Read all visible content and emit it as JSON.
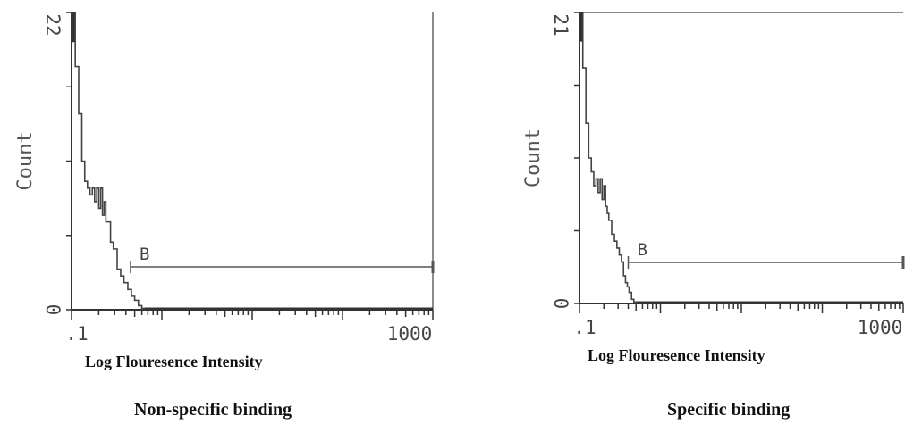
{
  "chart_data": [
    {
      "type": "histogram",
      "title": "Non-specific binding",
      "xlabel": "Log Flouresence Intensity",
      "ylabel": "Count",
      "x_scale": "log",
      "xlim": [
        0.1,
        1000
      ],
      "ylim": [
        0,
        22
      ],
      "y_tick_labels": [
        "0",
        "22"
      ],
      "x_tick_labels": [
        ".1",
        "1000"
      ],
      "gate": {
        "label": "B",
        "x_start": 0.45,
        "x_end": 1000
      },
      "series": [
        {
          "x": [
            0.1,
            0.11,
            0.12,
            0.13,
            0.14,
            0.15,
            0.16,
            0.17,
            0.18,
            0.19,
            0.2,
            0.21,
            0.22,
            0.23,
            0.24,
            0.25,
            0.27,
            0.29,
            0.32,
            0.35,
            0.38,
            0.42,
            0.46,
            0.5,
            0.55,
            0.6,
            0.65
          ],
          "values": [
            22,
            18,
            14.5,
            11,
            9.5,
            9,
            8.5,
            9,
            8,
            9,
            7.5,
            9,
            7,
            8,
            6.5,
            6.5,
            5,
            4.5,
            3,
            2.5,
            2,
            1.5,
            1,
            0.7,
            0.3,
            0.1,
            0
          ]
        }
      ]
    },
    {
      "type": "histogram",
      "title": "Specific binding",
      "xlabel": "Log Flouresence Intensity",
      "ylabel": "Count",
      "x_scale": "log",
      "xlim": [
        0.1,
        1000
      ],
      "ylim": [
        0,
        21
      ],
      "y_tick_labels": [
        "0",
        "21"
      ],
      "x_tick_labels": [
        ".1",
        "1000"
      ],
      "gate": {
        "label": "B",
        "x_start": 0.4,
        "x_end": 1000
      },
      "series": [
        {
          "x": [
            0.1,
            0.11,
            0.12,
            0.13,
            0.14,
            0.15,
            0.16,
            0.17,
            0.18,
            0.19,
            0.2,
            0.21,
            0.22,
            0.23,
            0.25,
            0.27,
            0.29,
            0.31,
            0.33,
            0.35,
            0.37,
            0.39,
            0.41,
            0.44,
            0.47,
            0.5
          ],
          "values": [
            21,
            17,
            13,
            10.5,
            9.5,
            8.5,
            9,
            8,
            9,
            7.5,
            8.5,
            7,
            6.5,
            6,
            5,
            4.5,
            4,
            3.5,
            3,
            2,
            1.5,
            1.2,
            0.8,
            0.3,
            0.1,
            0
          ]
        }
      ]
    }
  ]
}
